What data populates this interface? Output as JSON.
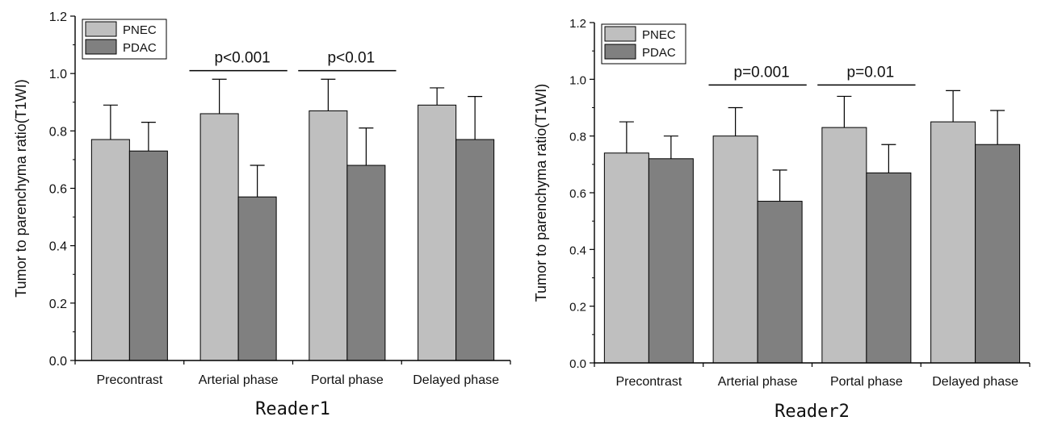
{
  "colors": {
    "pnec": "#bfbfbf",
    "pdac": "#808080",
    "axis": "#000000"
  },
  "chart_data": [
    {
      "type": "bar",
      "caption": "Reader1",
      "ylabel": "Tumor to parenchyma ratio(T1WI)",
      "ylim": [
        0,
        1.2
      ],
      "yticks": [
        "0.0",
        "0.2",
        "0.4",
        "0.6",
        "0.8",
        "1.0",
        "1.2"
      ],
      "categories": [
        "Precontrast",
        "Arterial phase",
        "Portal phase",
        "Delayed phase"
      ],
      "legend_position": "top-left",
      "series": [
        {
          "name": "PNEC",
          "color": "#bfbfbf",
          "values": [
            0.77,
            0.86,
            0.87,
            0.89
          ],
          "errors": [
            0.12,
            0.12,
            0.11,
            0.06
          ]
        },
        {
          "name": "PDAC",
          "color": "#808080",
          "values": [
            0.73,
            0.57,
            0.68,
            0.77
          ],
          "errors": [
            0.1,
            0.11,
            0.13,
            0.15
          ]
        }
      ],
      "annotations": [
        {
          "category_index": 1,
          "text": "p<0.001",
          "y": 1.01
        },
        {
          "category_index": 2,
          "text": "p<0.01",
          "y": 1.01
        }
      ]
    },
    {
      "type": "bar",
      "caption": "Reader2",
      "ylabel": "Tumor to parenchyma ratio(T1WI)",
      "ylim": [
        0,
        1.2
      ],
      "yticks": [
        "0.0",
        "0.2",
        "0.4",
        "0.6",
        "0.8",
        "1.0",
        "1.2"
      ],
      "categories": [
        "Precontrast",
        "Arterial phase",
        "Portal phase",
        "Delayed phase"
      ],
      "legend_position": "top-left",
      "series": [
        {
          "name": "PNEC",
          "color": "#bfbfbf",
          "values": [
            0.74,
            0.8,
            0.83,
            0.85
          ],
          "errors": [
            0.11,
            0.1,
            0.11,
            0.11
          ]
        },
        {
          "name": "PDAC",
          "color": "#808080",
          "values": [
            0.72,
            0.57,
            0.67,
            0.77
          ],
          "errors": [
            0.08,
            0.11,
            0.1,
            0.12
          ]
        }
      ],
      "annotations": [
        {
          "category_index": 1,
          "text": "p=0.001",
          "y": 0.98
        },
        {
          "category_index": 2,
          "text": "p=0.01",
          "y": 0.98
        }
      ]
    }
  ]
}
